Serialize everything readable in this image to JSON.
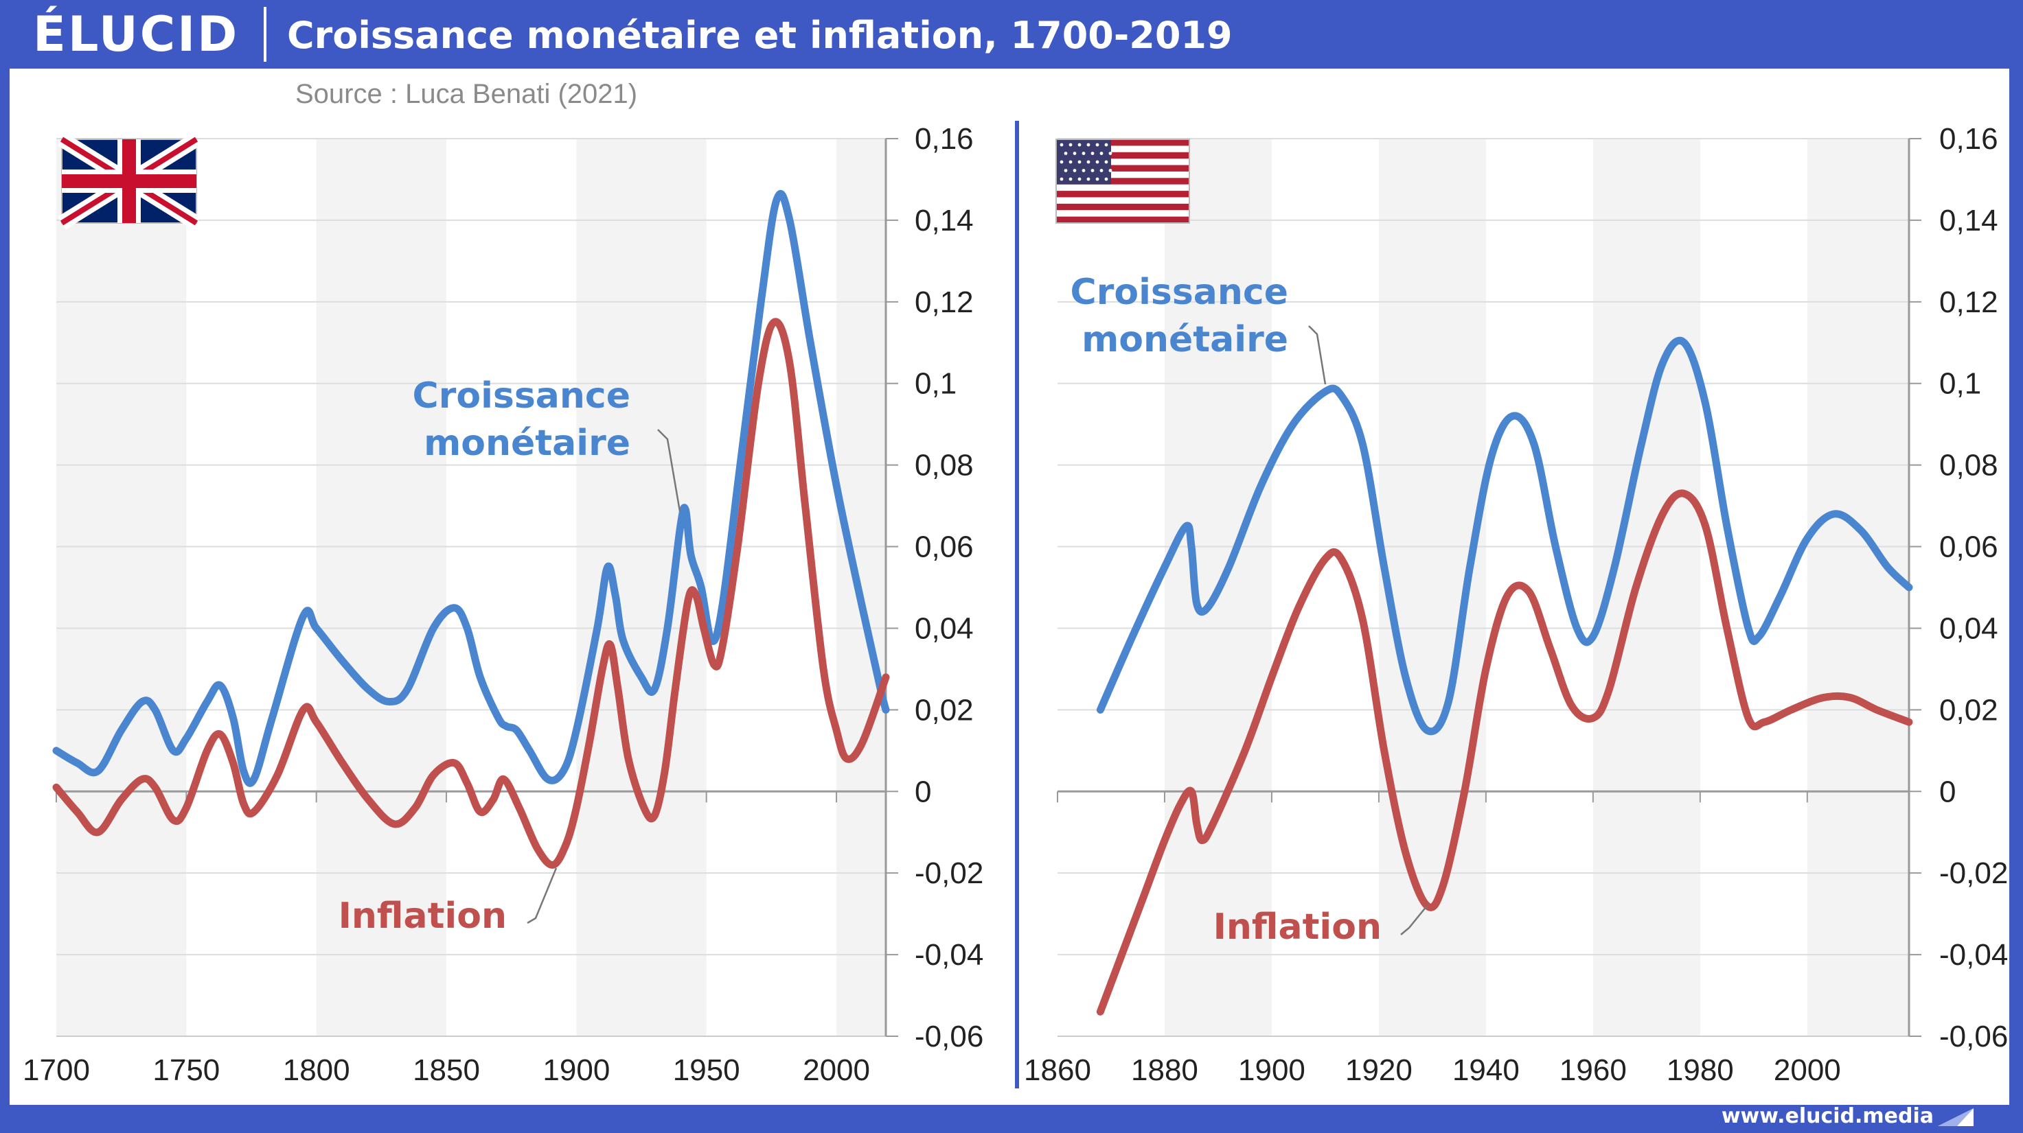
{
  "header": {
    "logo": "ÉLUCID",
    "title": "Croissance monétaire et inflation, 1700-2019",
    "source": "Source : Luca Benati (2021)"
  },
  "footer": {
    "url": "www.elucid.media"
  },
  "colors": {
    "brand": "#3e58c4",
    "money": "#4a86d0",
    "inflation": "#c0504d",
    "band": "#f3f3f3"
  },
  "chart_data": [
    {
      "type": "line",
      "flag": "uk-flag-icon",
      "xlim": [
        1700,
        2019
      ],
      "ylim": [
        -0.06,
        0.16
      ],
      "x_ticks": [
        "1700",
        "1750",
        "1800",
        "1850",
        "1900",
        "1950",
        "2000"
      ],
      "y_ticks": [
        "-0,06",
        "-0,04",
        "-0,02",
        "0",
        "0,02",
        "0,04",
        "0,06",
        "0,08",
        "0,1",
        "0,12",
        "0,14",
        "0,16"
      ],
      "annotations": [
        {
          "text": "Croissance",
          "series": "money"
        },
        {
          "text": "monétaire",
          "series": "money"
        },
        {
          "text": "Inflation",
          "series": "inflation"
        }
      ],
      "series": [
        {
          "id": "money",
          "points": [
            [
              1700,
              0.01
            ],
            [
              1708,
              0.007
            ],
            [
              1716,
              0.005
            ],
            [
              1725,
              0.015
            ],
            [
              1733,
              0.022
            ],
            [
              1738,
              0.02
            ],
            [
              1745,
              0.01
            ],
            [
              1750,
              0.013
            ],
            [
              1758,
              0.022
            ],
            [
              1763,
              0.026
            ],
            [
              1768,
              0.018
            ],
            [
              1772,
              0.005
            ],
            [
              1776,
              0.003
            ],
            [
              1783,
              0.018
            ],
            [
              1795,
              0.043
            ],
            [
              1800,
              0.04
            ],
            [
              1810,
              0.032
            ],
            [
              1820,
              0.025
            ],
            [
              1828,
              0.022
            ],
            [
              1835,
              0.025
            ],
            [
              1845,
              0.04
            ],
            [
              1853,
              0.045
            ],
            [
              1858,
              0.04
            ],
            [
              1863,
              0.028
            ],
            [
              1870,
              0.018
            ],
            [
              1873,
              0.016
            ],
            [
              1877,
              0.015
            ],
            [
              1882,
              0.01
            ],
            [
              1889,
              0.003
            ],
            [
              1895,
              0.005
            ],
            [
              1900,
              0.015
            ],
            [
              1908,
              0.04
            ],
            [
              1912,
              0.055
            ],
            [
              1915,
              0.048
            ],
            [
              1918,
              0.037
            ],
            [
              1925,
              0.028
            ],
            [
              1930,
              0.025
            ],
            [
              1935,
              0.04
            ],
            [
              1940,
              0.065
            ],
            [
              1942,
              0.069
            ],
            [
              1944,
              0.058
            ],
            [
              1948,
              0.05
            ],
            [
              1952,
              0.037
            ],
            [
              1956,
              0.045
            ],
            [
              1963,
              0.08
            ],
            [
              1971,
              0.12
            ],
            [
              1977,
              0.145
            ],
            [
              1982,
              0.14
            ],
            [
              1990,
              0.11
            ],
            [
              2000,
              0.075
            ],
            [
              2010,
              0.045
            ],
            [
              2017,
              0.025
            ],
            [
              2019,
              0.02
            ]
          ]
        },
        {
          "id": "inflation",
          "points": [
            [
              1700,
              0.001
            ],
            [
              1708,
              -0.005
            ],
            [
              1716,
              -0.01
            ],
            [
              1725,
              -0.002
            ],
            [
              1733,
              0.003
            ],
            [
              1738,
              0.001
            ],
            [
              1745,
              -0.007
            ],
            [
              1750,
              -0.004
            ],
            [
              1758,
              0.01
            ],
            [
              1763,
              0.014
            ],
            [
              1768,
              0.007
            ],
            [
              1772,
              -0.003
            ],
            [
              1776,
              -0.005
            ],
            [
              1785,
              0.004
            ],
            [
              1795,
              0.02
            ],
            [
              1800,
              0.017
            ],
            [
              1810,
              0.007
            ],
            [
              1820,
              -0.002
            ],
            [
              1830,
              -0.008
            ],
            [
              1838,
              -0.004
            ],
            [
              1845,
              0.004
            ],
            [
              1853,
              0.007
            ],
            [
              1858,
              0.002
            ],
            [
              1863,
              -0.005
            ],
            [
              1868,
              -0.002
            ],
            [
              1872,
              0.003
            ],
            [
              1878,
              -0.004
            ],
            [
              1885,
              -0.014
            ],
            [
              1891,
              -0.018
            ],
            [
              1896,
              -0.013
            ],
            [
              1900,
              -0.004
            ],
            [
              1905,
              0.012
            ],
            [
              1910,
              0.03
            ],
            [
              1913,
              0.036
            ],
            [
              1916,
              0.025
            ],
            [
              1920,
              0.008
            ],
            [
              1926,
              -0.004
            ],
            [
              1930,
              -0.006
            ],
            [
              1934,
              0.005
            ],
            [
              1938,
              0.025
            ],
            [
              1943,
              0.047
            ],
            [
              1946,
              0.048
            ],
            [
              1949,
              0.04
            ],
            [
              1953,
              0.031
            ],
            [
              1956,
              0.035
            ],
            [
              1962,
              0.06
            ],
            [
              1970,
              0.1
            ],
            [
              1976,
              0.115
            ],
            [
              1982,
              0.105
            ],
            [
              1988,
              0.07
            ],
            [
              1995,
              0.03
            ],
            [
              2000,
              0.015
            ],
            [
              2004,
              0.008
            ],
            [
              2010,
              0.012
            ],
            [
              2019,
              0.028
            ]
          ]
        }
      ]
    },
    {
      "type": "line",
      "flag": "us-flag-icon",
      "xlim": [
        1860,
        2019
      ],
      "ylim": [
        -0.06,
        0.16
      ],
      "x_ticks": [
        "1860",
        "1880",
        "1900",
        "1920",
        "1940",
        "1960",
        "1980",
        "2000"
      ],
      "y_ticks": [
        "-0,06",
        "-0,04",
        "-0,02",
        "0",
        "0,02",
        "0,04",
        "0,06",
        "0,08",
        "0,1",
        "0,12",
        "0,14",
        "0,16"
      ],
      "annotations": [
        {
          "text": "Croissance",
          "series": "money"
        },
        {
          "text": "monétaire",
          "series": "money"
        },
        {
          "text": "Inflation",
          "series": "inflation"
        }
      ],
      "series": [
        {
          "id": "money",
          "points": [
            [
              1868,
              0.02
            ],
            [
              1874,
              0.038
            ],
            [
              1880,
              0.055
            ],
            [
              1884,
              0.065
            ],
            [
              1885,
              0.06
            ],
            [
              1886,
              0.046
            ],
            [
              1888,
              0.045
            ],
            [
              1892,
              0.055
            ],
            [
              1898,
              0.075
            ],
            [
              1904,
              0.09
            ],
            [
              1910,
              0.098
            ],
            [
              1913,
              0.097
            ],
            [
              1917,
              0.085
            ],
            [
              1921,
              0.055
            ],
            [
              1925,
              0.028
            ],
            [
              1929,
              0.015
            ],
            [
              1933,
              0.022
            ],
            [
              1937,
              0.055
            ],
            [
              1941,
              0.082
            ],
            [
              1945,
              0.092
            ],
            [
              1949,
              0.085
            ],
            [
              1953,
              0.06
            ],
            [
              1957,
              0.04
            ],
            [
              1960,
              0.038
            ],
            [
              1964,
              0.055
            ],
            [
              1969,
              0.085
            ],
            [
              1973,
              0.105
            ],
            [
              1977,
              0.11
            ],
            [
              1981,
              0.095
            ],
            [
              1985,
              0.065
            ],
            [
              1989,
              0.04
            ],
            [
              1991,
              0.038
            ],
            [
              1995,
              0.048
            ],
            [
              2000,
              0.062
            ],
            [
              2005,
              0.068
            ],
            [
              2010,
              0.064
            ],
            [
              2015,
              0.055
            ],
            [
              2019,
              0.05
            ]
          ]
        },
        {
          "id": "inflation",
          "points": [
            [
              1868,
              -0.054
            ],
            [
              1872,
              -0.04
            ],
            [
              1876,
              -0.026
            ],
            [
              1880,
              -0.012
            ],
            [
              1883,
              -0.003
            ],
            [
              1885,
              0.0
            ],
            [
              1886,
              -0.008
            ],
            [
              1887,
              -0.012
            ],
            [
              1889,
              -0.008
            ],
            [
              1895,
              0.01
            ],
            [
              1900,
              0.028
            ],
            [
              1905,
              0.045
            ],
            [
              1910,
              0.057
            ],
            [
              1913,
              0.057
            ],
            [
              1917,
              0.042
            ],
            [
              1921,
              0.01
            ],
            [
              1925,
              -0.015
            ],
            [
              1929,
              -0.028
            ],
            [
              1932,
              -0.023
            ],
            [
              1936,
              0.0
            ],
            [
              1940,
              0.03
            ],
            [
              1944,
              0.048
            ],
            [
              1948,
              0.049
            ],
            [
              1952,
              0.035
            ],
            [
              1956,
              0.021
            ],
            [
              1960,
              0.018
            ],
            [
              1963,
              0.025
            ],
            [
              1968,
              0.05
            ],
            [
              1973,
              0.068
            ],
            [
              1977,
              0.073
            ],
            [
              1981,
              0.065
            ],
            [
              1985,
              0.04
            ],
            [
              1989,
              0.018
            ],
            [
              1992,
              0.017
            ],
            [
              1997,
              0.02
            ],
            [
              2003,
              0.023
            ],
            [
              2008,
              0.023
            ],
            [
              2013,
              0.02
            ],
            [
              2019,
              0.017
            ]
          ]
        }
      ]
    }
  ]
}
